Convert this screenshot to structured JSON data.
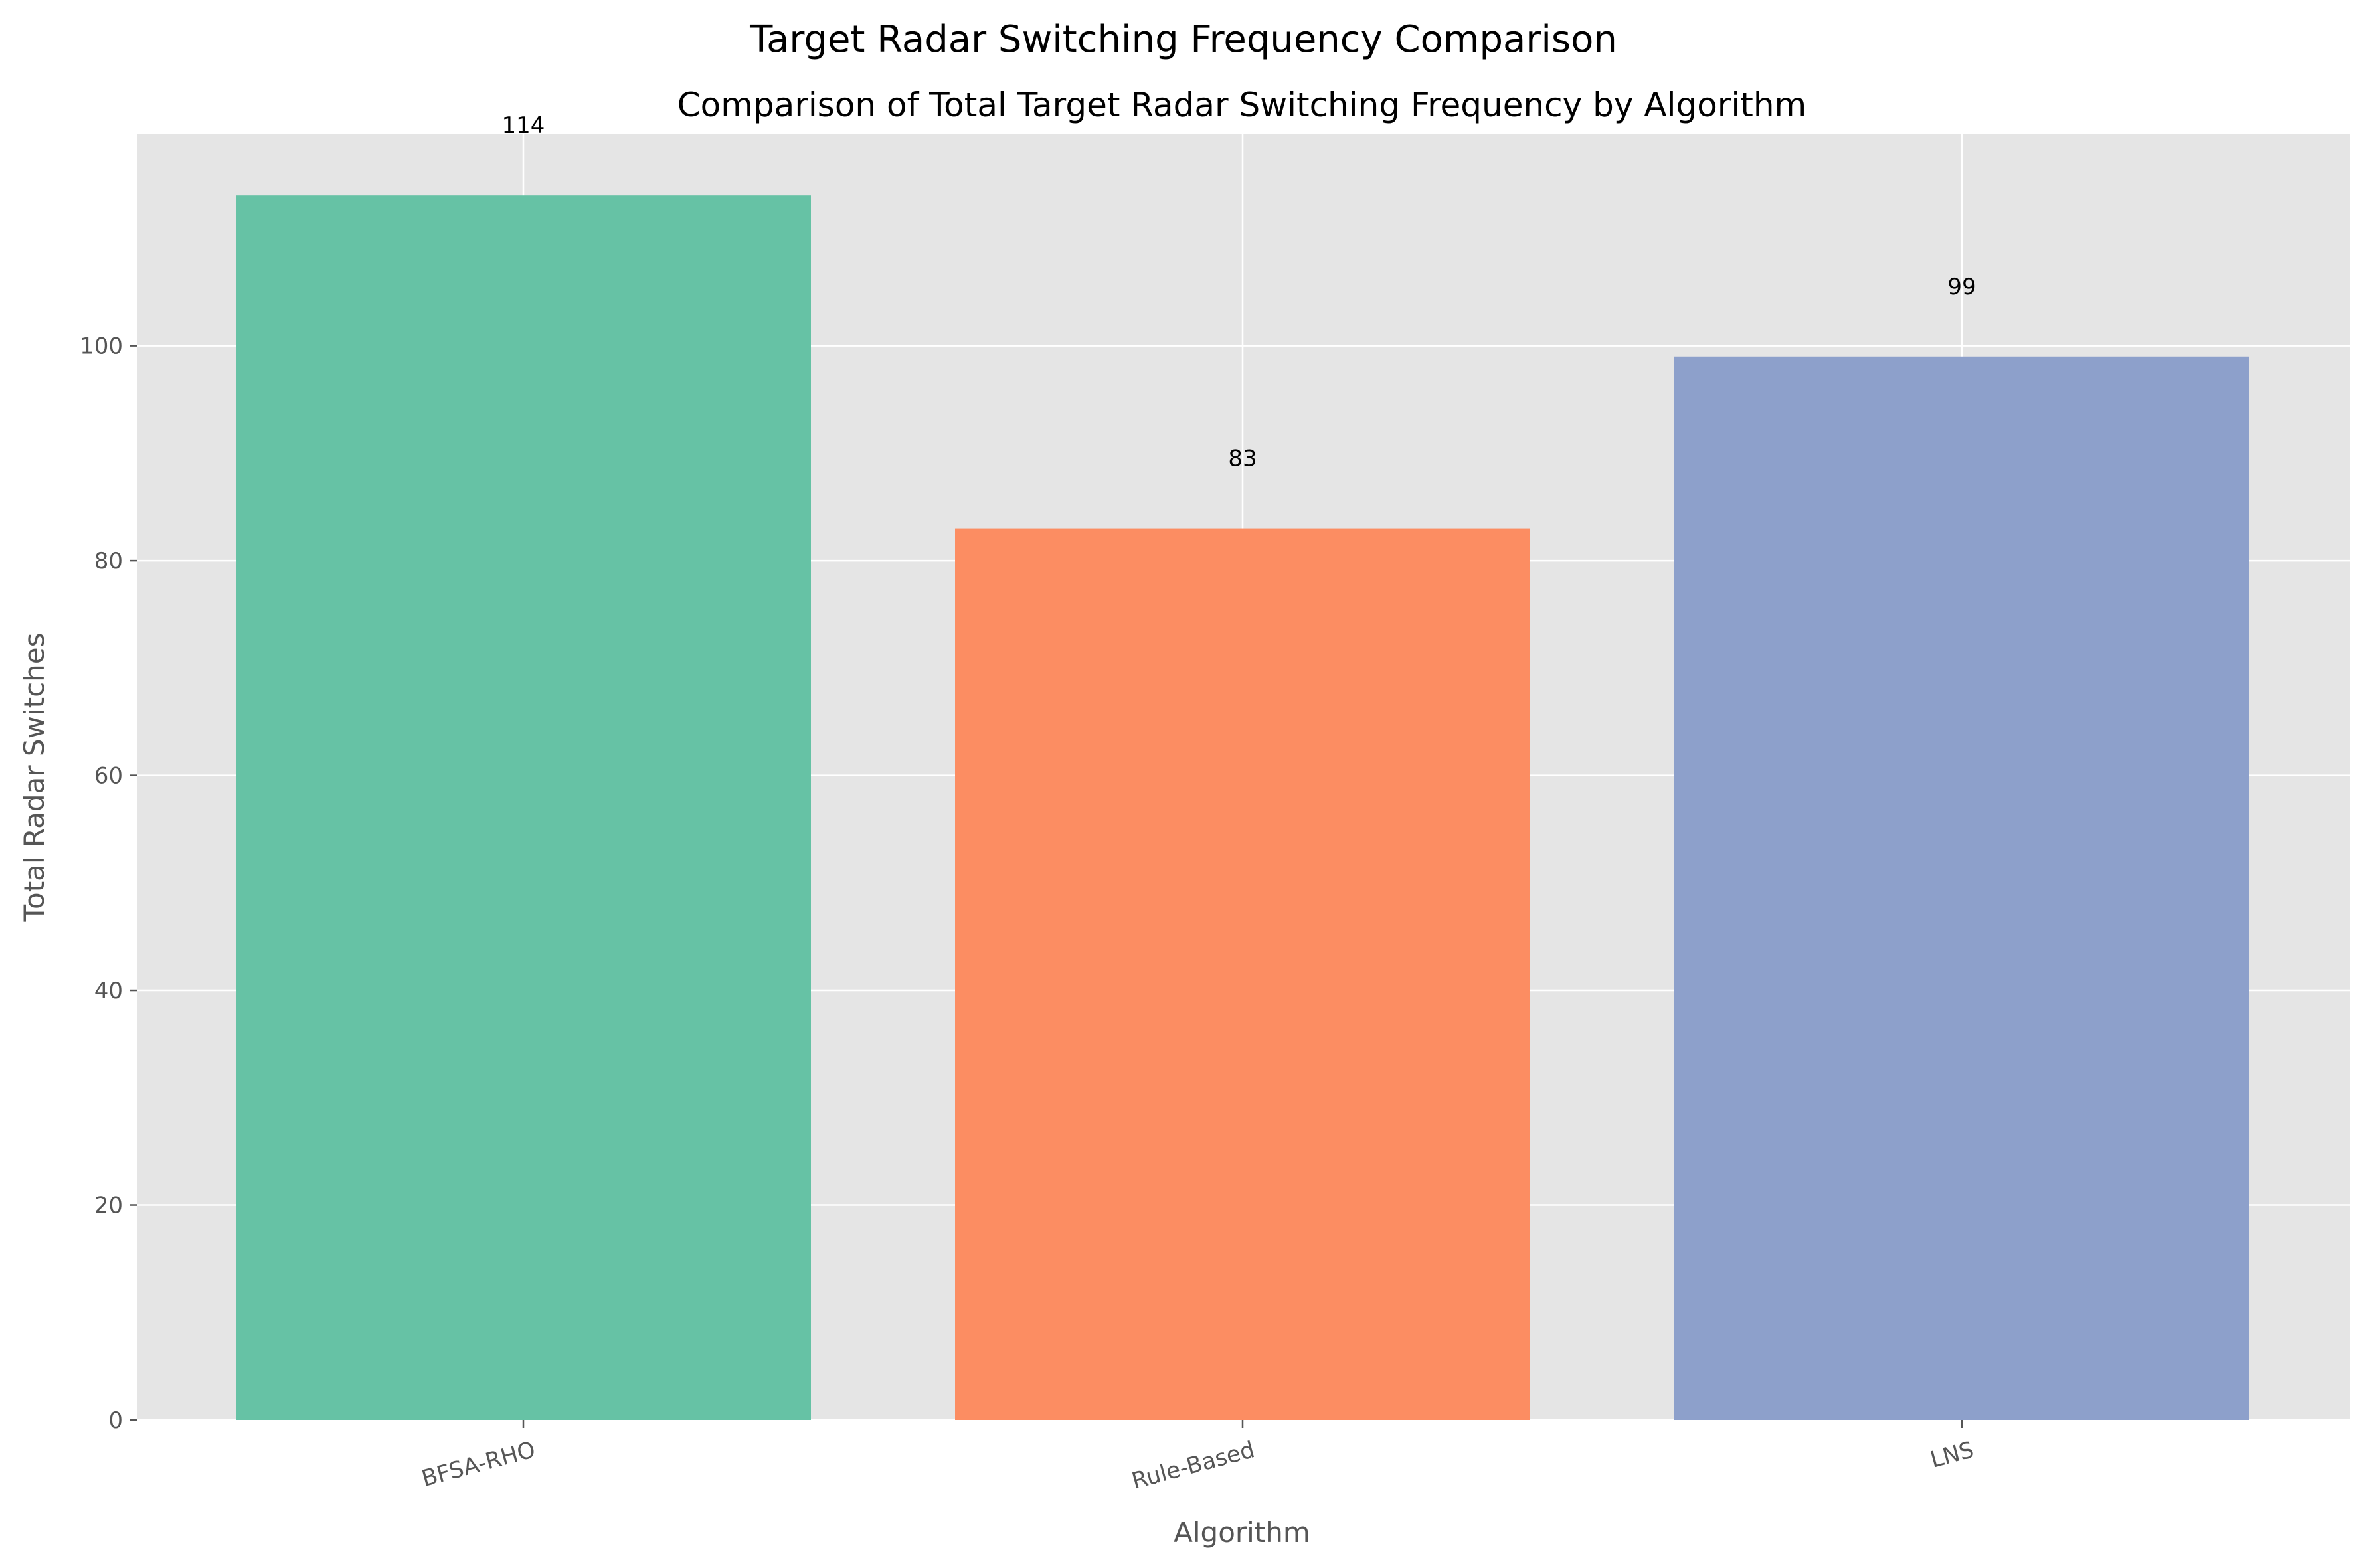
{
  "chart_data": {
    "type": "bar",
    "title": "Target Radar Switching Frequency Comparison",
    "subtitle": "Comparison of Total Target Radar Switching Frequency by Algorithm",
    "xlabel": "Algorithm",
    "ylabel": "Total Radar Switches",
    "categories": [
      "BFSA-RHO",
      "Rule-Based",
      "LNS"
    ],
    "values": [
      114,
      83,
      99
    ],
    "data_labels": [
      "114",
      "83",
      "99"
    ],
    "colors": [
      "#66c2a5",
      "#fc8d62",
      "#8da0cb"
    ],
    "ylim": [
      0,
      119.7
    ],
    "yticks": [
      0,
      20,
      40,
      60,
      80,
      100
    ],
    "ytick_labels": [
      "0",
      "20",
      "40",
      "60",
      "80",
      "100"
    ],
    "grid": true,
    "background": "#e5e5e5",
    "grid_color": "#ffffff"
  }
}
